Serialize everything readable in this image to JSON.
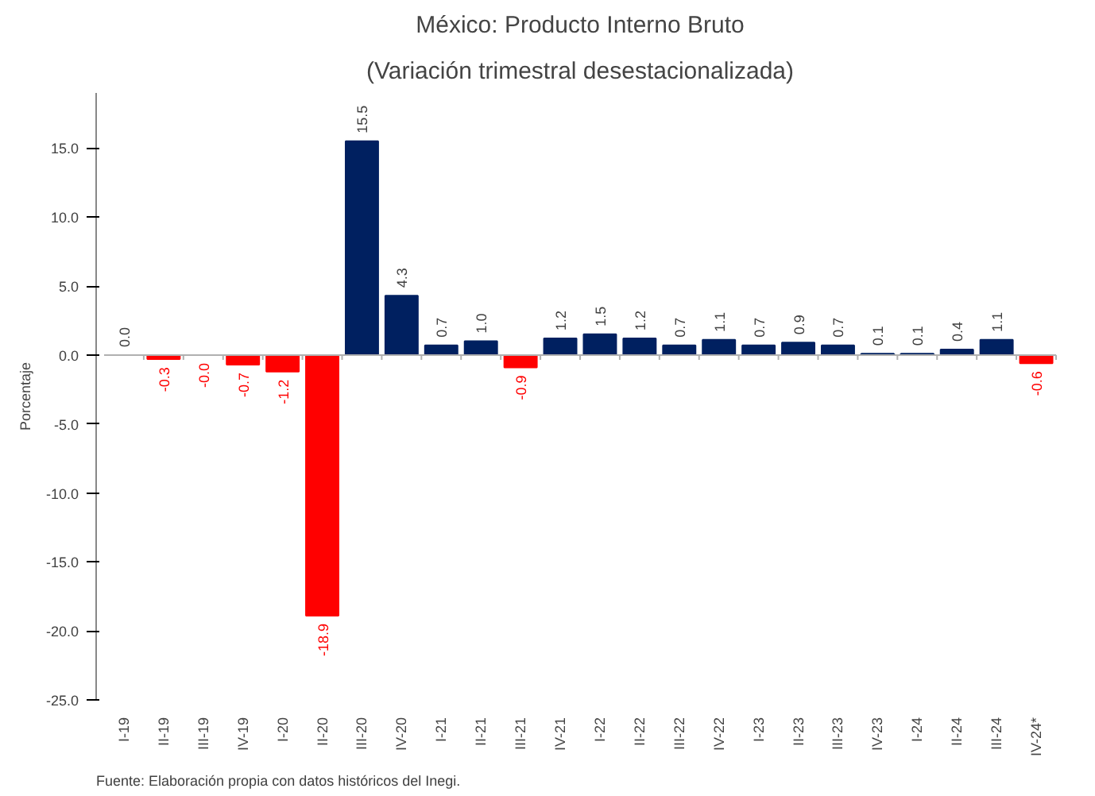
{
  "chart_data": {
    "type": "bar",
    "title": "México: Producto Interno Bruto",
    "subtitle": "(Variación trimestral desestacionalizada)",
    "ylabel": "Porcentaje",
    "categories": [
      "I-19",
      "II-19",
      "III-19",
      "IV-19",
      "I-20",
      "II-20",
      "III-20",
      "IV-20",
      "I-21",
      "II-21",
      "III-21",
      "IV-21",
      "I-22",
      "II-22",
      "III-22",
      "IV-22",
      "I-23",
      "II-23",
      "III-23",
      "IV-23",
      "I-24",
      "II-24",
      "III-24",
      "IV-24*"
    ],
    "values": [
      0.0,
      -0.3,
      -0.0,
      -0.7,
      -1.2,
      -18.9,
      15.5,
      4.3,
      0.7,
      1.0,
      -0.9,
      1.2,
      1.5,
      1.2,
      0.7,
      1.1,
      0.7,
      0.9,
      0.7,
      0.1,
      0.1,
      0.4,
      1.1,
      -0.6
    ],
    "colors": [
      "#002060",
      "#ff0000",
      "#ff0000",
      "#ff0000",
      "#ff0000",
      "#ff0000",
      "#002060",
      "#002060",
      "#002060",
      "#002060",
      "#ff0000",
      "#002060",
      "#002060",
      "#002060",
      "#002060",
      "#002060",
      "#002060",
      "#002060",
      "#002060",
      "#002060",
      "#002060",
      "#002060",
      "#002060",
      "#ff0000"
    ],
    "value_labels": [
      "0.0",
      "-0.3",
      "-0.0",
      "-0.7",
      "-1.2",
      "-18.9",
      "15.5",
      "4.3",
      "0.7",
      "1.0",
      "-0.9",
      "1.2",
      "1.5",
      "1.2",
      "0.7",
      "1.1",
      "0.7",
      "0.9",
      "0.7",
      "0.1",
      "0.1",
      "0.4",
      "1.1",
      "-0.6"
    ],
    "ylim": [
      -25,
      19
    ],
    "yticks": [
      {
        "value": -25,
        "label": "-25.0"
      },
      {
        "value": -20,
        "label": "-20.0"
      },
      {
        "value": -15,
        "label": "-15.0"
      },
      {
        "value": -10,
        "label": "-10.0"
      },
      {
        "value": -5,
        "label": "-5.0"
      },
      {
        "value": 0,
        "label": "0.0"
      },
      {
        "value": 5,
        "label": "5.0"
      },
      {
        "value": 10,
        "label": "10.0"
      },
      {
        "value": 15,
        "label": "15.0"
      }
    ],
    "grid": false,
    "ref_lines": [
      {
        "axis": "y",
        "value": 0,
        "color": "#b0b0b0"
      }
    ],
    "annotations": [
      "Fuente: Elaboración propia con datos históricos del Inegi."
    ]
  }
}
